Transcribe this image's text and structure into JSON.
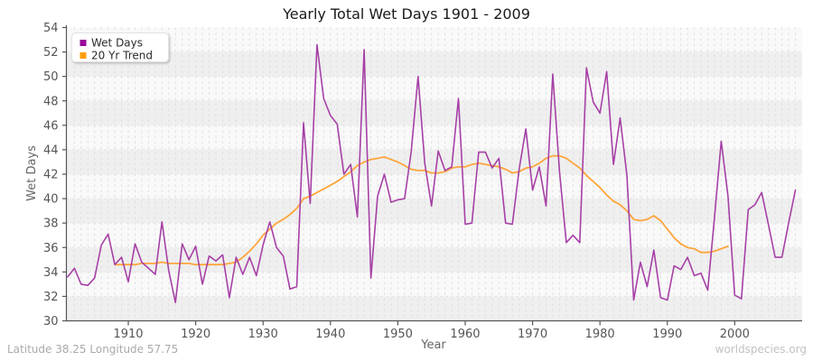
{
  "title": "Yearly Total Wet Days 1901 - 2009",
  "footer": {
    "left": "Latitude 38.25 Longitude 57.75",
    "right": "worldspecies.org"
  },
  "chart_data": {
    "type": "line",
    "title": "Yearly Total Wet Days 1901 - 2009",
    "xlabel": "Year",
    "ylabel": "Wet Days",
    "xlim": [
      1901,
      2009
    ],
    "ylim": [
      30,
      54
    ],
    "y_ticks": [
      30,
      32,
      34,
      36,
      38,
      40,
      42,
      44,
      46,
      48,
      50,
      52,
      54
    ],
    "x_ticks": [
      1910,
      1920,
      1930,
      1940,
      1950,
      1960,
      1970,
      1980,
      1990,
      2000
    ],
    "grid": "dashed yearly vertical lines, alternating horizontal bands every 2 units",
    "legend_position": "top-left",
    "legend": [
      {
        "label": "Wet Days",
        "color": "#990599"
      },
      {
        "label": "20 Yr Trend",
        "color": "#FF9D0A"
      }
    ],
    "series": [
      {
        "name": "Wet Days",
        "color": "#A640A6",
        "x_start": 1901,
        "x_step": 1,
        "values": [
          33.6,
          34.3,
          33.0,
          32.9,
          33.5,
          36.2,
          37.1,
          34.6,
          35.2,
          33.2,
          36.3,
          34.8,
          34.3,
          33.8,
          38.1,
          34.1,
          31.5,
          36.3,
          35.0,
          36.1,
          33.0,
          35.3,
          34.9,
          35.4,
          31.9,
          35.2,
          33.8,
          35.2,
          33.7,
          36.2,
          38.1,
          36.0,
          35.3,
          32.6,
          32.8,
          46.2,
          39.6,
          52.6,
          48.2,
          46.8,
          46.1,
          42.0,
          42.8,
          38.5,
          52.2,
          33.5,
          40.2,
          42.0,
          39.7,
          39.9,
          40.0,
          43.9,
          50.0,
          42.9,
          39.4,
          43.9,
          42.3,
          42.6,
          48.2,
          37.9,
          38.0,
          43.8,
          43.8,
          42.5,
          43.3,
          38.0,
          37.9,
          42.4,
          45.7,
          40.7,
          42.6,
          39.4,
          50.2,
          42.2,
          36.4,
          37.0,
          36.4,
          50.7,
          47.9,
          47.0,
          50.4,
          42.8,
          46.6,
          41.9,
          31.7,
          34.8,
          32.8,
          35.8,
          31.9,
          31.7,
          34.5,
          34.2,
          35.2,
          33.7,
          33.9,
          32.5,
          38.5,
          44.7,
          40.2,
          32.1,
          31.8,
          39.1,
          39.5,
          40.5,
          37.9,
          35.2,
          35.2,
          38.0,
          40.7
        ]
      },
      {
        "name": "20 Yr Trend",
        "color": "#FFA53C",
        "x_start": 1908,
        "x_step": 1,
        "values": [
          34.6,
          34.6,
          34.6,
          34.6,
          34.7,
          34.7,
          34.7,
          34.8,
          34.7,
          34.7,
          34.7,
          34.7,
          34.6,
          34.6,
          34.6,
          34.6,
          34.6,
          34.7,
          34.8,
          35.2,
          35.7,
          36.3,
          37.0,
          37.5,
          38.0,
          38.3,
          38.7,
          39.2,
          40.0,
          40.2,
          40.5,
          40.8,
          41.1,
          41.4,
          41.8,
          42.2,
          42.7,
          43.0,
          43.2,
          43.3,
          43.4,
          43.2,
          43.0,
          42.7,
          42.4,
          42.3,
          42.3,
          42.1,
          42.1,
          42.2,
          42.5,
          42.6,
          42.6,
          42.8,
          42.9,
          42.8,
          42.7,
          42.6,
          42.4,
          42.1,
          42.2,
          42.5,
          42.6,
          42.9,
          43.3,
          43.5,
          43.5,
          43.3,
          42.9,
          42.5,
          41.9,
          41.4,
          40.9,
          40.3,
          39.8,
          39.5,
          39.0,
          38.3,
          38.2,
          38.3,
          38.6,
          38.2,
          37.5,
          36.8,
          36.3,
          36.0,
          35.9,
          35.6,
          35.6,
          35.7,
          35.9,
          36.1
        ]
      }
    ]
  }
}
